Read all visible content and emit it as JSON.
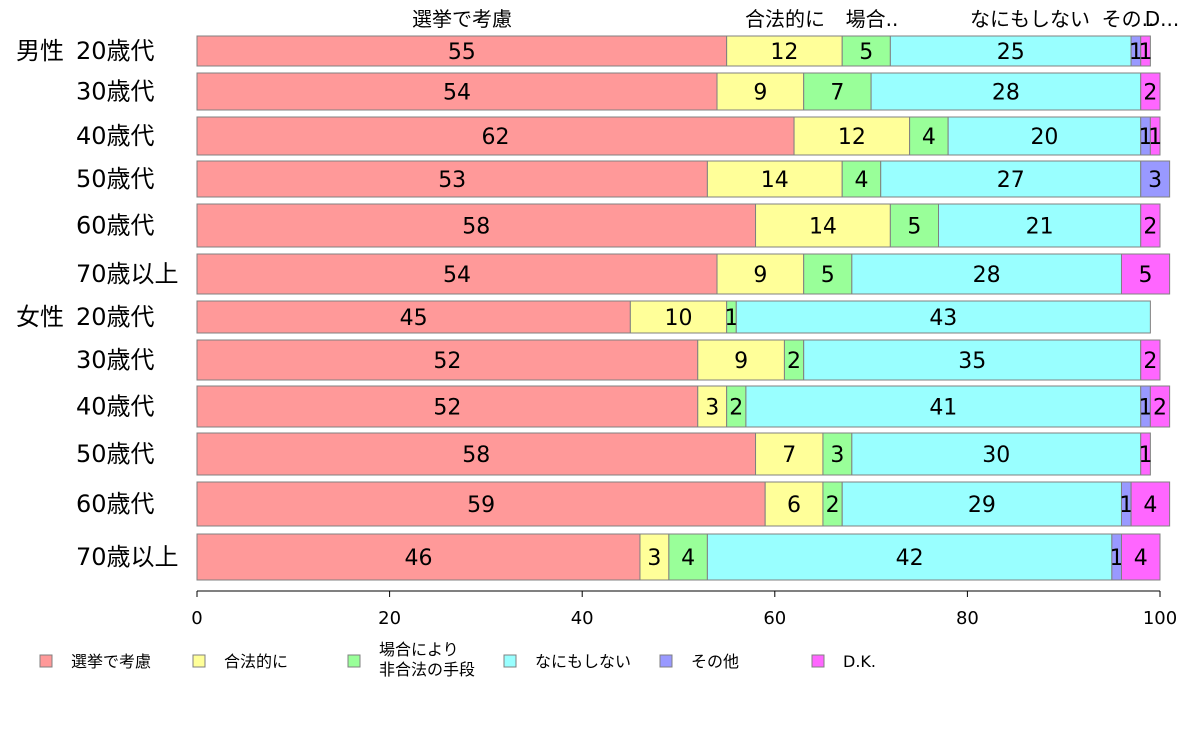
{
  "chart_data": {
    "type": "bar",
    "orientation": "horizontal",
    "stacked": true,
    "categories": [
      [
        "男性",
        "20歳代"
      ],
      [
        "",
        "30歳代"
      ],
      [
        "",
        "40歳代"
      ],
      [
        "",
        "50歳代"
      ],
      [
        "",
        "60歳代"
      ],
      [
        "",
        "70歳以上"
      ],
      [
        "女性",
        "20歳代"
      ],
      [
        "",
        "30歳代"
      ],
      [
        "",
        "40歳代"
      ],
      [
        "",
        "50歳代"
      ],
      [
        "",
        "60歳代"
      ],
      [
        "",
        "70歳以上"
      ]
    ],
    "series": [
      {
        "name": "選挙で考慮",
        "color": "#ff9999",
        "values": [
          55,
          54,
          62,
          53,
          58,
          54,
          45,
          52,
          52,
          58,
          59,
          46
        ]
      },
      {
        "name": "合法的に",
        "color": "#ffff99",
        "values": [
          12,
          9,
          12,
          14,
          14,
          9,
          10,
          9,
          3,
          7,
          6,
          3
        ]
      },
      {
        "name": "場合により\n非合法の手段",
        "color": "#99ff99",
        "values": [
          5,
          7,
          4,
          4,
          5,
          5,
          1,
          2,
          2,
          3,
          2,
          4
        ]
      },
      {
        "name": "なにもしない",
        "color": "#99ffff",
        "values": [
          25,
          28,
          20,
          27,
          21,
          28,
          43,
          35,
          41,
          30,
          29,
          42
        ]
      },
      {
        "name": "その他",
        "color": "#9999ff",
        "values": [
          1,
          0,
          1,
          3,
          0,
          0,
          0,
          0,
          1,
          0,
          1,
          1
        ]
      },
      {
        "name": "D.K.",
        "color": "#ff66ff",
        "values": [
          1,
          2,
          1,
          0,
          2,
          5,
          0,
          2,
          2,
          1,
          4,
          4
        ]
      }
    ],
    "top_labels": [
      "選挙で考慮",
      "合法的に",
      "場合..",
      "なにもしない",
      "その..",
      "D..."
    ],
    "xlim": [
      0,
      100
    ],
    "xticks": [
      0,
      20,
      40,
      60,
      80,
      100
    ],
    "grid": false,
    "legend_position": "bottom"
  }
}
